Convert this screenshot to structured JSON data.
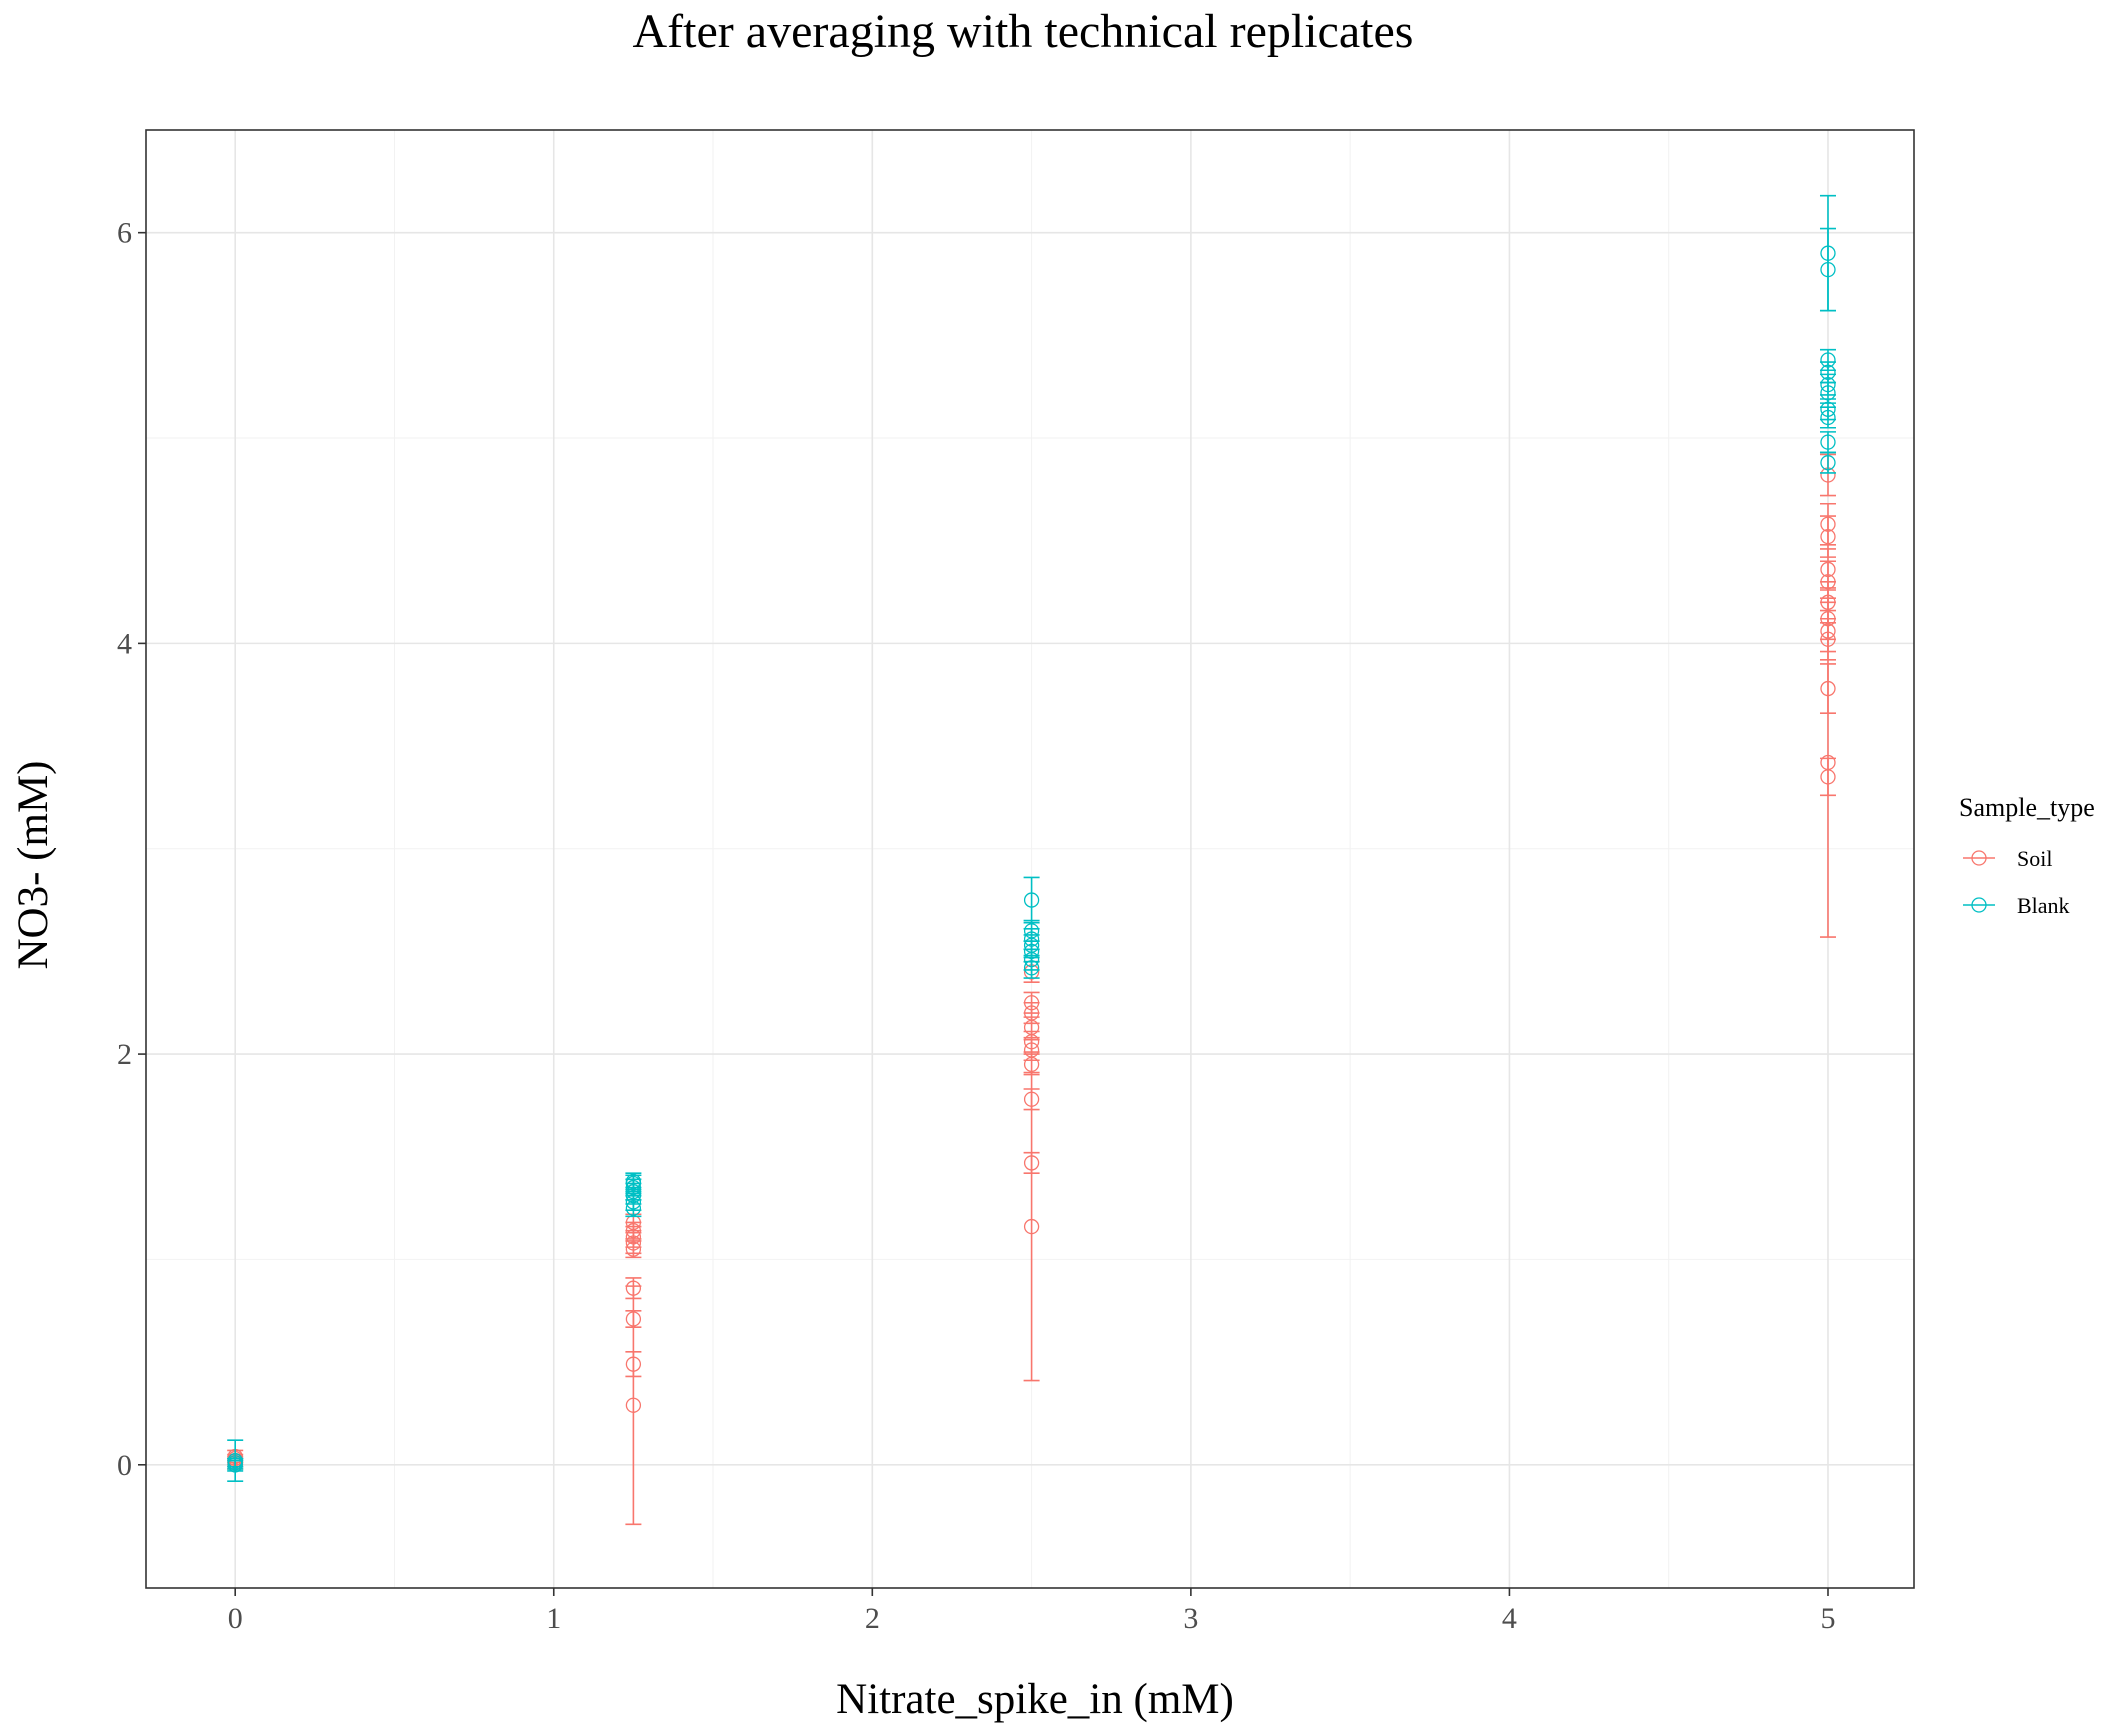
{
  "chart_data": {
    "type": "scatter",
    "title": "After averaging with technical replicates",
    "xlabel": "Nitrate_spike_in (mM)",
    "ylabel": "NO3- (mM)",
    "xlim": [
      -0.28,
      5.27
    ],
    "ylim": [
      -0.6,
      6.5
    ],
    "x_ticks": [
      0,
      1,
      2,
      3,
      4,
      5
    ],
    "y_ticks": [
      0,
      2,
      4,
      6
    ],
    "grid": true,
    "legend": {
      "title": "Sample_type",
      "position": "right"
    },
    "series": [
      {
        "name": "Soil",
        "color": "#F8766D",
        "points": [
          {
            "x": 0,
            "y": 0.02,
            "err": 0.02
          },
          {
            "x": 0,
            "y": 0.03,
            "err": 0.02
          },
          {
            "x": 0,
            "y": 0.01,
            "err": 0.02
          },
          {
            "x": 0,
            "y": 0.04,
            "err": 0.03
          },
          {
            "x": 0,
            "y": 0.0,
            "err": 0.02
          },
          {
            "x": 1.25,
            "y": 0.29,
            "err": 0.58
          },
          {
            "x": 1.25,
            "y": 0.49,
            "err": 0.06
          },
          {
            "x": 1.25,
            "y": 0.71,
            "err": 0.04
          },
          {
            "x": 1.25,
            "y": 0.86,
            "err": 0.05
          },
          {
            "x": 1.25,
            "y": 1.05,
            "err": 0.04
          },
          {
            "x": 1.25,
            "y": 1.08,
            "err": 0.05
          },
          {
            "x": 1.25,
            "y": 1.11,
            "err": 0.05
          },
          {
            "x": 1.25,
            "y": 1.14,
            "err": 0.04
          },
          {
            "x": 1.25,
            "y": 1.18,
            "err": 0.04
          },
          {
            "x": 2.5,
            "y": 1.16,
            "err": 0.75
          },
          {
            "x": 2.5,
            "y": 1.47,
            "err": 0.05
          },
          {
            "x": 2.5,
            "y": 1.78,
            "err": 0.05
          },
          {
            "x": 2.5,
            "y": 1.95,
            "err": 0.05
          },
          {
            "x": 2.5,
            "y": 2.02,
            "err": 0.05
          },
          {
            "x": 2.5,
            "y": 2.06,
            "err": 0.05
          },
          {
            "x": 2.5,
            "y": 2.13,
            "err": 0.05
          },
          {
            "x": 2.5,
            "y": 2.2,
            "err": 0.05
          },
          {
            "x": 2.5,
            "y": 2.25,
            "err": 0.05
          },
          {
            "x": 2.5,
            "y": 2.4,
            "err": 0.05
          },
          {
            "x": 5,
            "y": 3.35,
            "err": 0.09
          },
          {
            "x": 5,
            "y": 3.42,
            "err": 0.85
          },
          {
            "x": 5,
            "y": 3.78,
            "err": 0.12
          },
          {
            "x": 5,
            "y": 4.02,
            "err": 0.1
          },
          {
            "x": 5,
            "y": 4.06,
            "err": 0.1
          },
          {
            "x": 5,
            "y": 4.12,
            "err": 0.1
          },
          {
            "x": 5,
            "y": 4.2,
            "err": 0.1
          },
          {
            "x": 5,
            "y": 4.3,
            "err": 0.1
          },
          {
            "x": 5,
            "y": 4.36,
            "err": 0.1
          },
          {
            "x": 5,
            "y": 4.52,
            "err": 0.1
          },
          {
            "x": 5,
            "y": 4.58,
            "err": 0.1
          },
          {
            "x": 5,
            "y": 4.82,
            "err": 0.1
          }
        ]
      },
      {
        "name": "Blank",
        "color": "#00BFC4",
        "points": [
          {
            "x": 0,
            "y": 0.0,
            "err": 0.03
          },
          {
            "x": 0,
            "y": 0.01,
            "err": 0.02
          },
          {
            "x": 0,
            "y": 0.02,
            "err": 0.1
          },
          {
            "x": 0,
            "y": 0.0,
            "err": 0.02
          },
          {
            "x": 1.25,
            "y": 1.25,
            "err": 0.04
          },
          {
            "x": 1.25,
            "y": 1.28,
            "err": 0.04
          },
          {
            "x": 1.25,
            "y": 1.31,
            "err": 0.04
          },
          {
            "x": 1.25,
            "y": 1.33,
            "err": 0.04
          },
          {
            "x": 1.25,
            "y": 1.35,
            "err": 0.04
          },
          {
            "x": 1.25,
            "y": 1.37,
            "err": 0.04
          },
          {
            "x": 1.25,
            "y": 1.38,
            "err": 0.04
          },
          {
            "x": 2.5,
            "y": 2.42,
            "err": 0.05
          },
          {
            "x": 2.5,
            "y": 2.46,
            "err": 0.05
          },
          {
            "x": 2.5,
            "y": 2.5,
            "err": 0.05
          },
          {
            "x": 2.5,
            "y": 2.53,
            "err": 0.05
          },
          {
            "x": 2.5,
            "y": 2.56,
            "err": 0.05
          },
          {
            "x": 2.5,
            "y": 2.6,
            "err": 0.05
          },
          {
            "x": 2.5,
            "y": 2.75,
            "err": 0.11
          },
          {
            "x": 5,
            "y": 4.88,
            "err": 0.05
          },
          {
            "x": 5,
            "y": 4.98,
            "err": 0.05
          },
          {
            "x": 5,
            "y": 5.1,
            "err": 0.05
          },
          {
            "x": 5,
            "y": 5.14,
            "err": 0.05
          },
          {
            "x": 5,
            "y": 5.22,
            "err": 0.05
          },
          {
            "x": 5,
            "y": 5.26,
            "err": 0.05
          },
          {
            "x": 5,
            "y": 5.32,
            "err": 0.05
          },
          {
            "x": 5,
            "y": 5.38,
            "err": 0.05
          },
          {
            "x": 5,
            "y": 5.82,
            "err": 0.2
          },
          {
            "x": 5,
            "y": 5.9,
            "err": 0.28
          }
        ]
      }
    ]
  }
}
